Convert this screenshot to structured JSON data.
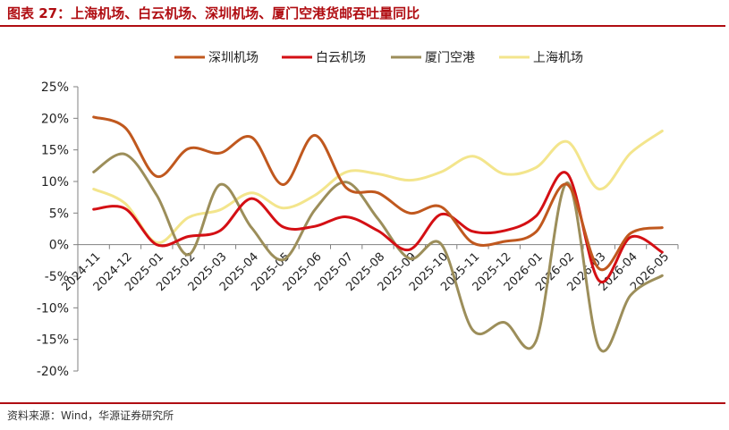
{
  "header": {
    "title": "图表 27：上海机场、白云机场、深圳机场、厦门空港货邮吞吐量同比"
  },
  "footer": {
    "source": "资料来源：Wind，华源证券研究所"
  },
  "chart_data": {
    "type": "line",
    "title": "",
    "xlabel": "",
    "ylabel": "",
    "ylim": [
      -20,
      25
    ],
    "y_ticks": [
      25,
      20,
      15,
      10,
      5,
      0,
      -5,
      -10,
      -15,
      -20
    ],
    "y_tick_labels": [
      "25%",
      "20%",
      "15%",
      "10%",
      "5%",
      "0%",
      "-5%",
      "-10%",
      "-15%",
      "-20%"
    ],
    "grid": false,
    "legend_position": "top",
    "categories": [
      "2024-11",
      "2024-12",
      "2025-01",
      "2025-02",
      "2025-03",
      "2025-04",
      "2025-05",
      "2025-06",
      "2025-07",
      "2025-08",
      "2025-09",
      "2025-10",
      "2025-11",
      "2025-12",
      "2026-01",
      "2026-02",
      "2026-03",
      "2026-04",
      "2026-05"
    ],
    "series": [
      {
        "name": "深圳机场",
        "color": "#c0581e",
        "values": [
          20.2,
          18.5,
          10.8,
          15.2,
          14.5,
          17.0,
          9.5,
          17.3,
          9.0,
          8.2,
          5.0,
          6.0,
          0.3,
          0.5,
          2.0,
          9.5,
          -3.8,
          1.8,
          2.7
        ]
      },
      {
        "name": "白云机场",
        "color": "#d40f14",
        "values": [
          5.6,
          5.7,
          0.0,
          1.3,
          2.2,
          7.3,
          2.8,
          2.9,
          4.4,
          2.2,
          -0.8,
          4.8,
          2.1,
          2.2,
          4.5,
          11.2,
          -5.7,
          1.2,
          -1.2
        ]
      },
      {
        "name": "厦门空港",
        "color": "#9c8e5a",
        "values": [
          11.5,
          14.3,
          7.8,
          -1.6,
          9.5,
          2.7,
          -2.4,
          5.5,
          9.9,
          4.1,
          -2.2,
          0.1,
          -13.5,
          -12.3,
          -15.3,
          9.8,
          -16.3,
          -8.0,
          -4.9
        ]
      },
      {
        "name": "上海机场",
        "color": "#f3e58c",
        "values": [
          8.8,
          6.5,
          0.3,
          4.3,
          5.5,
          8.2,
          5.8,
          7.8,
          11.5,
          11.2,
          10.2,
          11.5,
          14.0,
          11.2,
          12.2,
          16.3,
          8.8,
          14.5,
          18.0
        ]
      }
    ]
  }
}
